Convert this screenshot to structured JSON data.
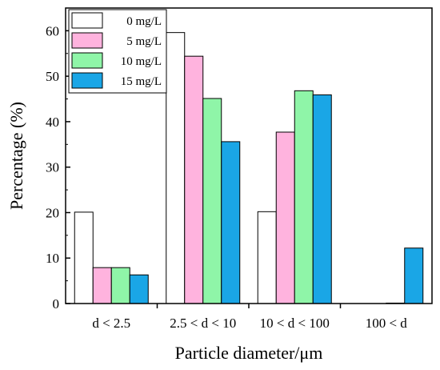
{
  "chart_data": {
    "type": "bar",
    "xlabel": "Particle diameter/μm",
    "ylabel": "Percentage (%)",
    "ylim": [
      0,
      65
    ],
    "yticks": [
      0,
      10,
      20,
      30,
      40,
      50,
      60
    ],
    "grid": false,
    "legend_position": "top-left",
    "categories": [
      "d < 2.5",
      "2.5 < d < 10",
      "10 < d < 100",
      "100 < d"
    ],
    "series": [
      {
        "name": "0 mg/L",
        "color": "#ffffff",
        "values": [
          20.1,
          59.6,
          20.2,
          0
        ]
      },
      {
        "name": "5 mg/L",
        "color": "#ffb3de",
        "values": [
          7.9,
          54.4,
          37.7,
          0
        ]
      },
      {
        "name": "10 mg/L",
        "color": "#8ff5a8",
        "values": [
          7.9,
          45.1,
          46.8,
          0.1
        ]
      },
      {
        "name": "15 mg/L",
        "color": "#1aa6e6",
        "values": [
          6.3,
          35.6,
          45.9,
          12.2
        ]
      }
    ]
  }
}
